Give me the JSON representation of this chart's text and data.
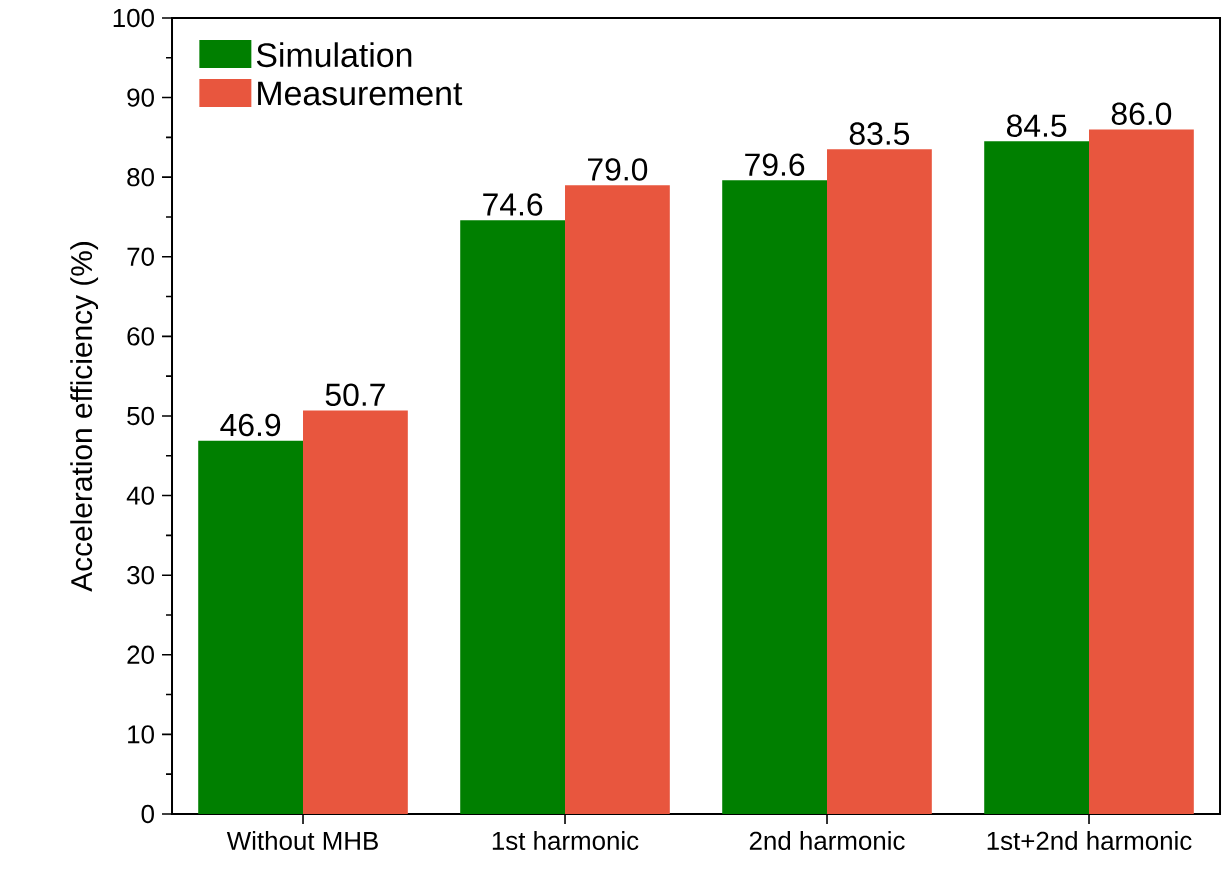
{
  "chart_data": {
    "type": "bar",
    "ylabel": "Acceleration efficiency (%)",
    "categories": [
      "Without MHB",
      "1st harmonic",
      "2nd harmonic",
      "1st+2nd harmonic"
    ],
    "series": [
      {
        "name": "Simulation",
        "color": "#007f00",
        "values": [
          46.9,
          74.6,
          79.6,
          84.5
        ],
        "value_labels": [
          "46.9",
          "74.6",
          "79.6",
          "84.5"
        ]
      },
      {
        "name": "Measurement",
        "color": "#e8563e",
        "values": [
          50.7,
          79.0,
          83.5,
          86.0
        ],
        "value_labels": [
          "50.7",
          "79.0",
          "83.5",
          "86.0"
        ]
      }
    ],
    "ylim": [
      0,
      100
    ],
    "yticks": [
      0,
      10,
      20,
      30,
      40,
      50,
      60,
      70,
      80,
      90,
      100
    ],
    "legend": "top left",
    "grid": false
  }
}
